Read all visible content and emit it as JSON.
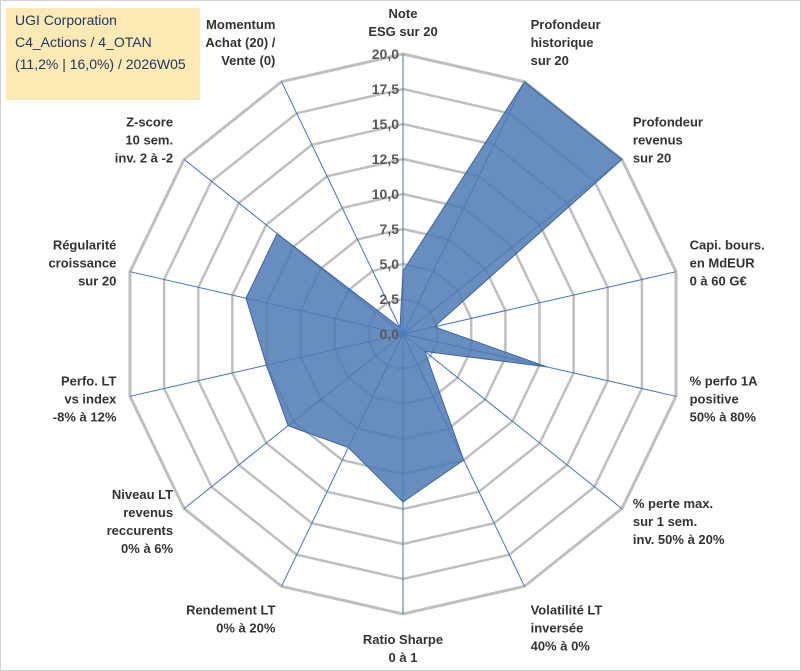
{
  "title_lines": [
    "UGI Corporation",
    "C4_Actions / 4_OTAN",
    "(11,2% | 16,0%) / 2026W05"
  ],
  "chart_data": {
    "type": "radar",
    "rmax": 20,
    "tick_step": 2.5,
    "tick_labels": [
      "0,0",
      "2,5",
      "5,0",
      "7,5",
      "10,0",
      "12,5",
      "15,0",
      "17,5",
      "20,0"
    ],
    "axes": [
      [
        "Note",
        "ESG sur 20"
      ],
      [
        "Profondeur",
        "historique",
        "sur 20"
      ],
      [
        "Profondeur",
        "revenus",
        "sur 20"
      ],
      [
        "Capi. bours.",
        "en MdEUR",
        "0 à 60 G€"
      ],
      [
        "% perfo 1A",
        "positive",
        "50% à 80%"
      ],
      [
        "% perte max.",
        "sur 1 sem.",
        "inv. 50% à 20%"
      ],
      [
        "Volatilité LT",
        "inversée",
        "40% à 0%"
      ],
      [
        "Ratio Sharpe",
        "0 à 1"
      ],
      [
        "Rendement LT",
        "0% à 20%"
      ],
      [
        "Niveau LT",
        "revenus",
        "reccurents",
        "0% à 6%"
      ],
      [
        "Perfo. LT",
        "vs index",
        "-8% à 12%"
      ],
      [
        "Régularité",
        "croissance",
        "sur 20"
      ],
      [
        "Z-score",
        "10 sem.",
        "inv. 2 à -2"
      ],
      [
        "Momentum",
        "Achat (20) /",
        "Vente (0)"
      ]
    ],
    "values": [
      4.5,
      20,
      20,
      2.3,
      10.5,
      2.0,
      10.0,
      12.0,
      9.0,
      10.5,
      10.0,
      11.5,
      11.5,
      0.5
    ],
    "colors": {
      "fill": "#4e7ab5",
      "grid": "#bfbfbf",
      "axis_line": "#4472c4"
    }
  }
}
